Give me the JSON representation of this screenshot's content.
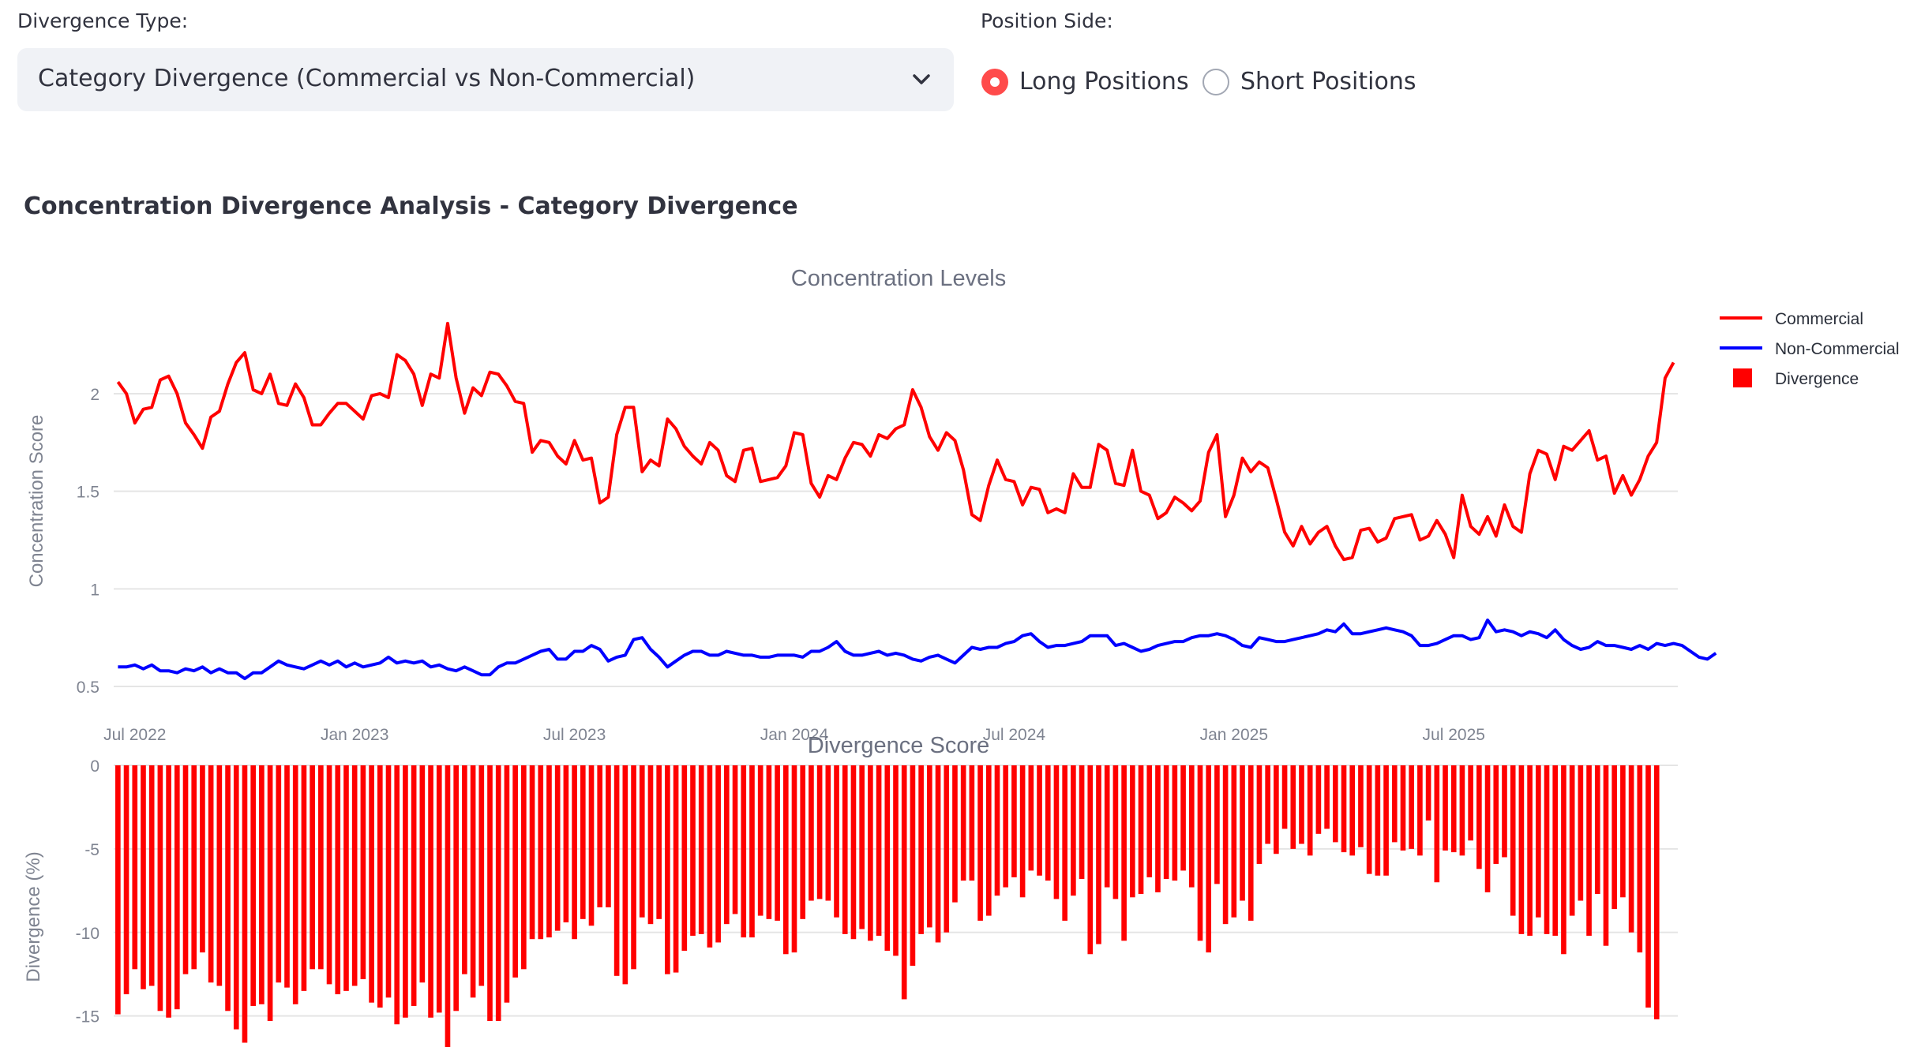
{
  "controls": {
    "divergence_type_label": "Divergence Type:",
    "divergence_type_value": "Category Divergence (Commercial vs Non-Commercial)",
    "position_side_label": "Position Side:",
    "options": [
      "Long Positions",
      "Short Positions"
    ],
    "selected_option": "Long Positions"
  },
  "section_title": "Concentration Divergence Analysis - Category Divergence",
  "colors": {
    "accent": "#ff4b4b",
    "commercial": "#ff0000",
    "non_commercial": "#0000ff",
    "divergence": "#ff0000",
    "grid": "#e5e5e5",
    "axis_text": "#7f8491"
  },
  "chart_data": {
    "type": "line",
    "date_range": [
      "2022-05",
      "2025-12"
    ],
    "x_tick_labels": [
      "Jul 2022",
      "Jan 2023",
      "Jul 2023",
      "Jan 2024",
      "Jul 2024",
      "Jan 2025",
      "Jul 2025"
    ],
    "legend": [
      "Commercial",
      "Non-Commercial",
      "Divergence"
    ],
    "top": {
      "title": "Concentration Levels",
      "ylabel": "Concentration Score",
      "ylim": [
        0.5,
        2.4
      ],
      "yticks": [
        0.5,
        1,
        1.5,
        2
      ],
      "series": [
        {
          "name": "Commercial",
          "values": [
            2.06,
            2.0,
            1.85,
            1.92,
            1.93,
            2.07,
            2.09,
            2.0,
            1.85,
            1.79,
            1.72,
            1.88,
            1.91,
            2.05,
            2.16,
            2.21,
            2.02,
            2.0,
            2.1,
            1.95,
            1.94,
            2.05,
            1.98,
            1.84,
            1.84,
            1.9,
            1.95,
            1.95,
            1.91,
            1.87,
            1.99,
            2.0,
            1.98,
            2.2,
            2.17,
            2.1,
            1.94,
            2.1,
            2.08,
            2.36,
            2.08,
            1.9,
            2.03,
            1.99,
            2.11,
            2.1,
            2.04,
            1.96,
            1.95,
            1.7,
            1.76,
            1.75,
            1.68,
            1.64,
            1.76,
            1.66,
            1.67,
            1.44,
            1.47,
            1.79,
            1.93,
            1.93,
            1.6,
            1.66,
            1.63,
            1.87,
            1.82,
            1.73,
            1.68,
            1.64,
            1.75,
            1.71,
            1.58,
            1.55,
            1.71,
            1.72,
            1.55,
            1.56,
            1.57,
            1.63,
            1.8,
            1.79,
            1.54,
            1.47,
            1.58,
            1.56,
            1.67,
            1.75,
            1.74,
            1.68,
            1.79,
            1.77,
            1.82,
            1.84,
            2.02,
            1.93,
            1.78,
            1.71,
            1.8,
            1.76,
            1.61,
            1.38,
            1.35,
            1.53,
            1.66,
            1.56,
            1.55,
            1.43,
            1.52,
            1.51,
            1.39,
            1.41,
            1.39,
            1.59,
            1.52,
            1.52,
            1.74,
            1.71,
            1.54,
            1.53,
            1.71,
            1.5,
            1.48,
            1.36,
            1.39,
            1.47,
            1.44,
            1.4,
            1.45,
            1.7,
            1.79,
            1.37,
            1.48,
            1.67,
            1.6,
            1.65,
            1.62,
            1.46,
            1.29,
            1.22,
            1.32,
            1.23,
            1.29,
            1.32,
            1.22,
            1.15,
            1.16,
            1.3,
            1.31,
            1.24,
            1.26,
            1.36,
            1.37,
            1.38,
            1.25,
            1.27,
            1.35,
            1.28,
            1.16,
            1.48,
            1.32,
            1.28,
            1.37,
            1.27,
            1.43,
            1.32,
            1.29,
            1.59,
            1.71,
            1.69,
            1.56,
            1.73,
            1.71,
            1.76,
            1.81,
            1.66,
            1.68,
            1.49,
            1.58,
            1.48,
            1.56,
            1.68,
            1.75,
            2.08,
            2.16
          ]
        },
        {
          "name": "Non-Commercial",
          "values": [
            0.6,
            0.6,
            0.61,
            0.59,
            0.61,
            0.58,
            0.58,
            0.57,
            0.59,
            0.58,
            0.6,
            0.57,
            0.59,
            0.57,
            0.57,
            0.54,
            0.57,
            0.57,
            0.6,
            0.63,
            0.61,
            0.6,
            0.59,
            0.61,
            0.63,
            0.61,
            0.63,
            0.6,
            0.62,
            0.6,
            0.61,
            0.62,
            0.65,
            0.62,
            0.63,
            0.62,
            0.63,
            0.6,
            0.61,
            0.59,
            0.58,
            0.6,
            0.58,
            0.56,
            0.56,
            0.6,
            0.62,
            0.62,
            0.64,
            0.66,
            0.68,
            0.69,
            0.64,
            0.64,
            0.68,
            0.68,
            0.71,
            0.69,
            0.63,
            0.65,
            0.66,
            0.74,
            0.75,
            0.69,
            0.65,
            0.6,
            0.63,
            0.66,
            0.68,
            0.68,
            0.66,
            0.66,
            0.68,
            0.67,
            0.66,
            0.66,
            0.65,
            0.65,
            0.66,
            0.66,
            0.66,
            0.65,
            0.68,
            0.68,
            0.7,
            0.73,
            0.68,
            0.66,
            0.66,
            0.67,
            0.68,
            0.66,
            0.67,
            0.66,
            0.64,
            0.63,
            0.65,
            0.66,
            0.64,
            0.62,
            0.66,
            0.7,
            0.69,
            0.7,
            0.7,
            0.72,
            0.73,
            0.76,
            0.77,
            0.73,
            0.7,
            0.71,
            0.71,
            0.72,
            0.73,
            0.76,
            0.76,
            0.76,
            0.71,
            0.72,
            0.7,
            0.68,
            0.69,
            0.71,
            0.72,
            0.73,
            0.73,
            0.75,
            0.76,
            0.76,
            0.77,
            0.76,
            0.74,
            0.71,
            0.7,
            0.75,
            0.74,
            0.73,
            0.73,
            0.74,
            0.75,
            0.76,
            0.77,
            0.79,
            0.78,
            0.82,
            0.77,
            0.77,
            0.78,
            0.79,
            0.8,
            0.79,
            0.78,
            0.76,
            0.71,
            0.71,
            0.72,
            0.74,
            0.76,
            0.76,
            0.74,
            0.75,
            0.84,
            0.78,
            0.79,
            0.78,
            0.76,
            0.78,
            0.77,
            0.75,
            0.79,
            0.74,
            0.71,
            0.69,
            0.7,
            0.73,
            0.71,
            0.71,
            0.7,
            0.69,
            0.71,
            0.69,
            0.72,
            0.71,
            0.72,
            0.71,
            0.68,
            0.65,
            0.64,
            0.67
          ]
        }
      ]
    },
    "bottom": {
      "title": "Divergence Score",
      "ylabel": "Divergence (%)",
      "ylim": [
        -17,
        0
      ],
      "yticks": [
        0,
        -5,
        -10,
        -15
      ],
      "series": [
        {
          "name": "Divergence",
          "type": "bar",
          "values": [
            -14.9,
            -13.7,
            -12.2,
            -13.4,
            -13.2,
            -14.7,
            -15.1,
            -14.6,
            -12.5,
            -12.2,
            -11.2,
            -13.0,
            -13.2,
            -14.7,
            -15.8,
            -16.6,
            -14.4,
            -14.3,
            -15.3,
            -13.0,
            -13.3,
            -14.3,
            -13.5,
            -12.2,
            -12.2,
            -13.1,
            -13.7,
            -13.5,
            -13.2,
            -12.8,
            -14.2,
            -14.5,
            -13.9,
            -15.5,
            -15.1,
            -14.4,
            -13.0,
            -15.1,
            -14.8,
            -17.2,
            -14.7,
            -12.5,
            -13.9,
            -13.2,
            -15.3,
            -15.3,
            -14.2,
            -12.7,
            -12.2,
            -10.4,
            -10.4,
            -10.3,
            -9.9,
            -9.4,
            -10.4,
            -9.2,
            -9.6,
            -8.5,
            -8.5,
            -12.6,
            -13.1,
            -12.2,
            -9.1,
            -9.5,
            -9.2,
            -12.5,
            -12.4,
            -11.1,
            -10.2,
            -10.1,
            -10.9,
            -10.6,
            -9.5,
            -8.9,
            -10.3,
            -10.3,
            -9.0,
            -9.2,
            -9.3,
            -11.3,
            -11.2,
            -9.2,
            -8.1,
            -8.0,
            -8.1,
            -9.1,
            -10.1,
            -10.4,
            -9.8,
            -10.5,
            -10.2,
            -11.1,
            -11.4,
            -14.0,
            -12.0,
            -10.1,
            -9.7,
            -10.6,
            -10.0,
            -8.2,
            -6.9,
            -6.9,
            -9.3,
            -9.0,
            -7.8,
            -7.3,
            -6.7,
            -7.9,
            -6.3,
            -6.6,
            -6.9,
            -8.0,
            -9.3,
            -7.8,
            -6.8,
            -11.3,
            -10.7,
            -7.3,
            -8.0,
            -10.5,
            -7.9,
            -7.7,
            -6.7,
            -7.6,
            -6.8,
            -6.9,
            -6.3,
            -7.3,
            -10.5,
            -11.2,
            -7.1,
            -9.5,
            -9.1,
            -8.1,
            -9.3,
            -5.9,
            -4.7,
            -5.3,
            -3.8,
            -5.0,
            -4.7,
            -5.4,
            -4.1,
            -3.8,
            -4.6,
            -5.2,
            -5.4,
            -4.9,
            -6.5,
            -6.6,
            -6.6,
            -4.6,
            -5.1,
            -5.0,
            -5.4,
            -3.3,
            -7.0,
            -5.1,
            -5.2,
            -5.4,
            -4.5,
            -6.2,
            -7.6,
            -5.9,
            -5.5,
            -9.0,
            -10.1,
            -10.2,
            -9.1,
            -10.1,
            -10.2,
            -11.3,
            -9.0,
            -8.1,
            -10.2,
            -7.7,
            -10.8,
            -8.6,
            -7.9,
            -10.0,
            -11.2,
            -14.5,
            -15.2
          ]
        }
      ]
    }
  }
}
